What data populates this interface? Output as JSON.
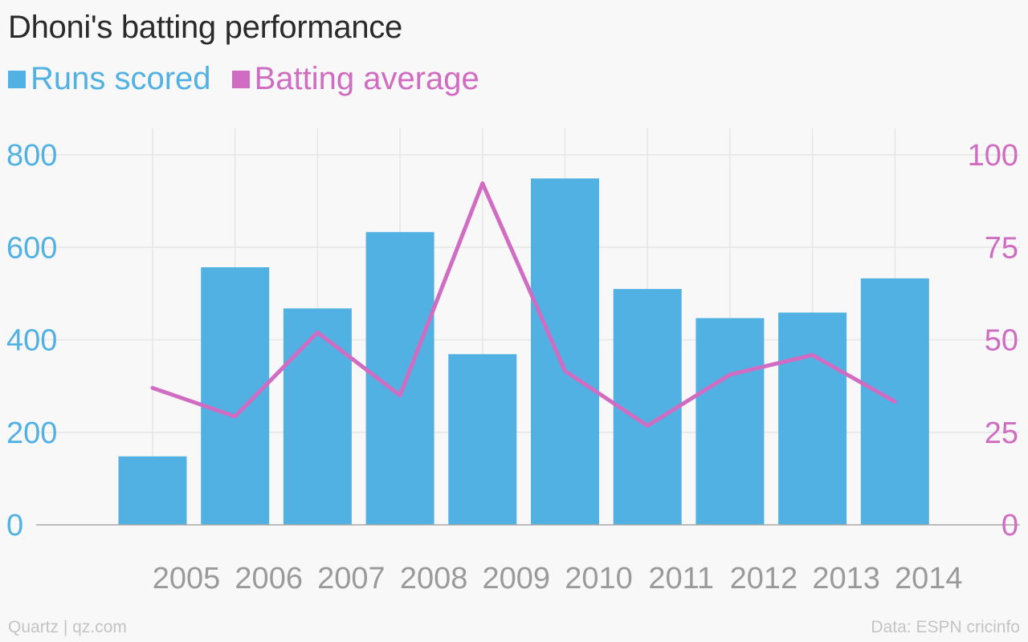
{
  "title": "Dhoni's batting performance",
  "source": "Data: ESPN cricinfo",
  "credit": "Quartz | qz.com",
  "colors": {
    "bars": "#52b1e3",
    "line": "#d06cc2",
    "x_ticks": "#9a9a9a"
  },
  "chart_data": {
    "type": "bar",
    "categories": [
      "2005",
      "2006",
      "2007",
      "2008",
      "2009",
      "2010",
      "2011",
      "2012",
      "2013",
      "2014"
    ],
    "series": [
      {
        "name": "Runs scored",
        "type": "bar",
        "axis": "left",
        "values": [
          148,
          557,
          468,
          633,
          369,
          749,
          510,
          447,
          459,
          533
        ]
      },
      {
        "name": "Batting average",
        "type": "line",
        "axis": "right",
        "values": [
          37,
          29.3,
          52,
          35,
          92.3,
          41.6,
          26.8,
          40.6,
          45.9,
          33.3
        ]
      }
    ],
    "y_left": {
      "ticks": [
        0,
        200,
        400,
        600,
        800
      ],
      "range": [
        0,
        800
      ]
    },
    "y_right": {
      "ticks": [
        0,
        25,
        50,
        75,
        100
      ],
      "range": [
        0,
        100
      ]
    },
    "grid": true,
    "legend_position": "top-left"
  }
}
